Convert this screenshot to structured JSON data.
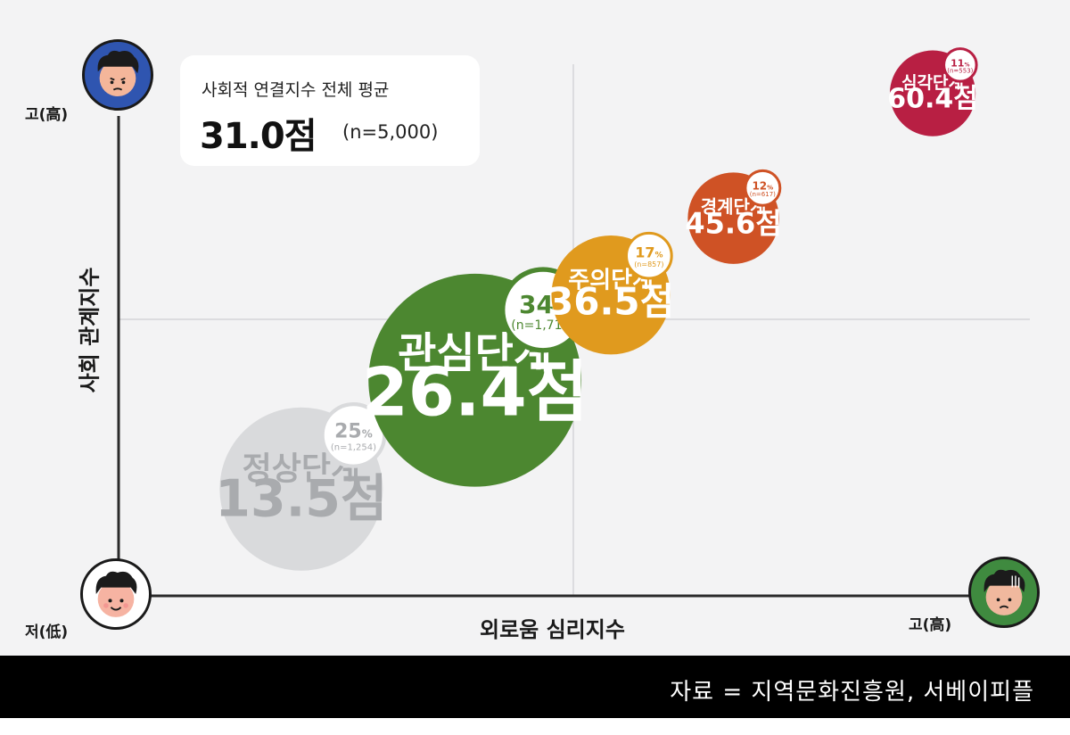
{
  "chart_data": {
    "type": "scatter",
    "title": "",
    "xlabel": "외로움 심리지수",
    "ylabel": "사회 관계지수",
    "x_axis": {
      "low_label": "저(低)",
      "high_label": "고(高)"
    },
    "y_axis": {
      "high_label": "고(高)"
    },
    "summary": {
      "title": "사회적 연결지수 전체 평균",
      "score": "31.0점",
      "n": "(n=5,000)"
    },
    "points": [
      {
        "name": "정상단계",
        "score": 13.5,
        "score_label": "13.5점",
        "pct": "25",
        "pct_unit": "%",
        "n_label": "(n=1,254)",
        "color": "#d9dadc",
        "text_color": "#a9abae"
      },
      {
        "name": "관심단계",
        "score": 26.4,
        "score_label": "26.4점",
        "pct": "34",
        "pct_unit": "%",
        "n_label": "(n=1,719)",
        "color": "#4c8730",
        "text_color": "#ffffff"
      },
      {
        "name": "주의단계",
        "score": 36.5,
        "score_label": "36.5점",
        "pct": "17",
        "pct_unit": "%",
        "n_label": "(n=857)",
        "color": "#e09a1e",
        "text_color": "#ffffff"
      },
      {
        "name": "경계단계",
        "score": 45.6,
        "score_label": "45.6점",
        "pct": "12",
        "pct_unit": "%",
        "n_label": "(n=617)",
        "color": "#cf5225",
        "text_color": "#ffffff"
      },
      {
        "name": "심각단계",
        "score": 60.4,
        "score_label": "60.4점",
        "pct": "11",
        "pct_unit": "%",
        "n_label": "(n=553)",
        "color": "#b81f43",
        "text_color": "#ffffff"
      }
    ]
  },
  "source": "자료 = 지역문화진흥원, 서베이피플"
}
